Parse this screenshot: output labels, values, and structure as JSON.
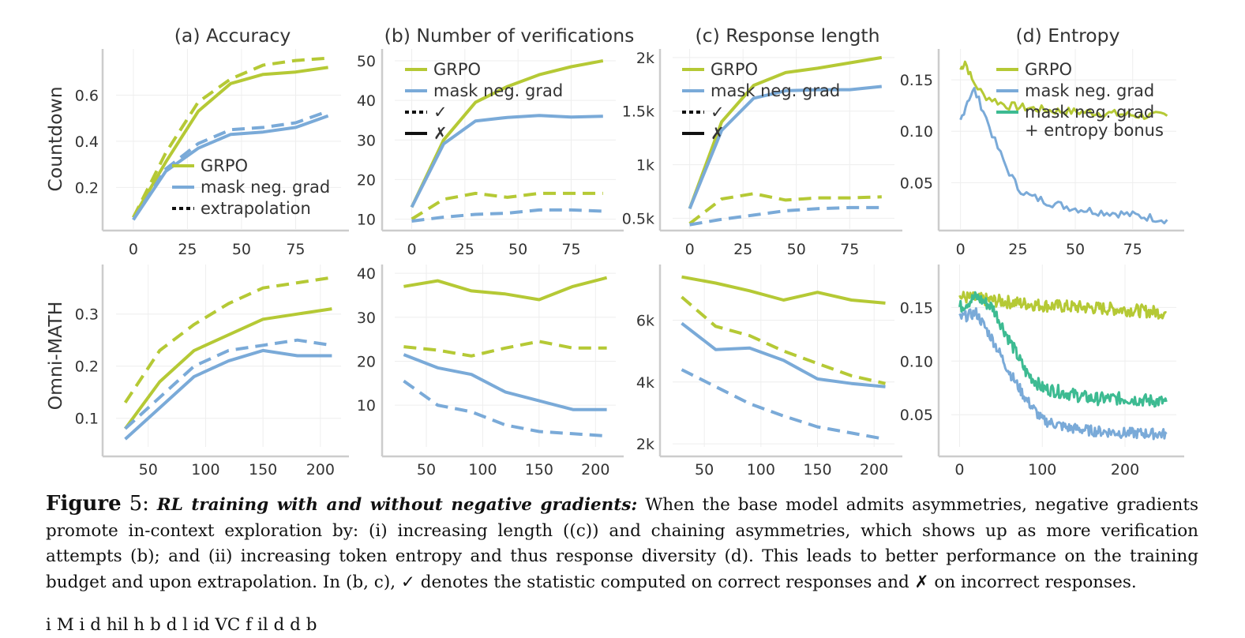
{
  "figure": {
    "label": "Figure",
    "number": "5:",
    "caption_title": "RL training with and without negative gradients:",
    "caption_body": " When the base model admits asymmetries, negative gradients promote in-context exploration by: (i) increasing length ((c)) and chaining asymmetries, which shows up as more verification attempts (b); and (ii) increasing token entropy and thus response diversity (d). This leads to better performance on the training budget and upon extrapolation. In (b, c), ✓ denotes the statistic computed on correct responses and ✗ on incorrect responses.",
    "next_text_fragment": "i          M         i            d   hil  h  b        d l  id         VC                      f il                      d                 d  b"
  },
  "colors": {
    "grpo": "#b5c935",
    "mask": "#7aaad8",
    "entropy_bonus": "#3dbb92",
    "axis": "#cccccc",
    "grid": "#eeeeee"
  },
  "row_labels": [
    "Countdown",
    "Omni-MATH"
  ],
  "chart_data": [
    {
      "id": "countdown-accuracy",
      "type": "line",
      "title": "(a) Accuracy",
      "xlim": [
        -8,
        96
      ],
      "ylim": [
        0.02,
        0.8
      ],
      "xticks": [
        0,
        25,
        50,
        75
      ],
      "xticklabels": [
        "0",
        "25",
        "50",
        "75"
      ],
      "yticks": [
        0.2,
        0.4,
        0.6
      ],
      "yticklabels": [
        "0.2",
        "0.4",
        "0.6"
      ],
      "legend": {
        "position": "lower-right",
        "entries": [
          {
            "label": "GRPO",
            "color": "grpo",
            "style": "solid"
          },
          {
            "label": "mask neg. grad",
            "color": "mask",
            "style": "solid"
          },
          {
            "label": "extrapolation",
            "color": "#111111",
            "style": "dotted"
          }
        ]
      },
      "series": [
        {
          "color": "grpo",
          "style": "solid",
          "x": [
            0,
            15,
            30,
            45,
            60,
            75,
            90
          ],
          "y": [
            0.07,
            0.31,
            0.53,
            0.65,
            0.69,
            0.7,
            0.72
          ]
        },
        {
          "color": "grpo",
          "style": "dashed",
          "x": [
            0,
            15,
            30,
            45,
            60,
            75,
            90
          ],
          "y": [
            0.07,
            0.35,
            0.57,
            0.67,
            0.73,
            0.75,
            0.76
          ]
        },
        {
          "color": "mask",
          "style": "solid",
          "x": [
            0,
            15,
            30,
            45,
            60,
            75,
            90
          ],
          "y": [
            0.06,
            0.27,
            0.37,
            0.43,
            0.44,
            0.46,
            0.51
          ]
        },
        {
          "color": "mask",
          "style": "dashed",
          "x": [
            0,
            15,
            30,
            45,
            60,
            75,
            90
          ],
          "y": [
            0.06,
            0.28,
            0.39,
            0.45,
            0.46,
            0.48,
            0.53
          ]
        }
      ]
    },
    {
      "id": "countdown-verifications",
      "type": "line",
      "title": "(b) Number of verifications",
      "xlim": [
        -8,
        96
      ],
      "ylim": [
        7.5,
        53
      ],
      "xticks": [
        0,
        25,
        50,
        75
      ],
      "xticklabels": [
        "0",
        "25",
        "50",
        "75"
      ],
      "yticks": [
        10,
        20,
        30,
        40,
        50
      ],
      "yticklabels": [
        "10",
        "20",
        "30",
        "40",
        "50"
      ],
      "legend": {
        "position": "top-left",
        "entries": [
          {
            "label": "GRPO",
            "color": "grpo",
            "style": "solid"
          },
          {
            "label": "mask neg. grad",
            "color": "mask",
            "style": "solid"
          },
          {
            "label": "✓",
            "color": "#111111",
            "style": "dotted"
          },
          {
            "label": "✗",
            "color": "#111111",
            "style": "solid"
          }
        ]
      },
      "series": [
        {
          "color": "grpo",
          "style": "solid",
          "x": [
            0,
            15,
            30,
            45,
            60,
            75,
            90
          ],
          "y": [
            13,
            30,
            39.5,
            43.5,
            46.5,
            48.5,
            50
          ]
        },
        {
          "color": "mask",
          "style": "solid",
          "x": [
            0,
            15,
            30,
            45,
            60,
            75,
            90
          ],
          "y": [
            13,
            29,
            34.8,
            35.7,
            36.2,
            35.8,
            36
          ]
        },
        {
          "color": "grpo",
          "style": "dashed",
          "x": [
            0,
            15,
            30,
            45,
            60,
            75,
            90
          ],
          "y": [
            10,
            15,
            16.5,
            15.5,
            16.5,
            16.5,
            16.5
          ]
        },
        {
          "color": "mask",
          "style": "dashed",
          "x": [
            0,
            15,
            30,
            45,
            60,
            75,
            90
          ],
          "y": [
            9.5,
            10.5,
            11.2,
            11.5,
            12.3,
            12.3,
            12
          ]
        }
      ]
    },
    {
      "id": "countdown-length",
      "type": "line",
      "title": "(c) Response length",
      "xlim": [
        -8,
        96
      ],
      "ylim": [
        400,
        2080
      ],
      "xticks": [
        0,
        25,
        50,
        75
      ],
      "xticklabels": [
        "0",
        "25",
        "50",
        "75"
      ],
      "yticks": [
        500,
        1000,
        1500,
        2000
      ],
      "yticklabels": [
        "0.5k",
        "1k",
        "1.5k",
        "2k"
      ],
      "legend": {
        "position": "top-left",
        "entries": [
          {
            "label": "GRPO",
            "color": "grpo",
            "style": "solid"
          },
          {
            "label": "mask neg. grad",
            "color": "mask",
            "style": "solid"
          },
          {
            "label": "✓",
            "color": "#111111",
            "style": "dotted"
          },
          {
            "label": "✗",
            "color": "#111111",
            "style": "solid"
          }
        ]
      },
      "series": [
        {
          "color": "grpo",
          "style": "solid",
          "x": [
            0,
            15,
            30,
            45,
            60,
            75,
            90
          ],
          "y": [
            590,
            1400,
            1740,
            1860,
            1900,
            1950,
            2000
          ]
        },
        {
          "color": "mask",
          "style": "solid",
          "x": [
            0,
            15,
            30,
            45,
            60,
            75,
            90
          ],
          "y": [
            590,
            1320,
            1620,
            1690,
            1700,
            1700,
            1730
          ]
        },
        {
          "color": "grpo",
          "style": "dashed",
          "x": [
            0,
            15,
            30,
            45,
            60,
            75,
            90
          ],
          "y": [
            450,
            680,
            730,
            670,
            690,
            690,
            700
          ]
        },
        {
          "color": "mask",
          "style": "dashed",
          "x": [
            0,
            15,
            30,
            45,
            60,
            75,
            90
          ],
          "y": [
            440,
            490,
            530,
            570,
            590,
            600,
            600
          ]
        }
      ]
    },
    {
      "id": "countdown-entropy",
      "type": "line",
      "title": "(d) Entropy",
      "xlim": [
        -4,
        94
      ],
      "ylim": [
        0.005,
        0.18
      ],
      "xticks": [
        0,
        25,
        50,
        75
      ],
      "xticklabels": [
        "0",
        "25",
        "50",
        "75"
      ],
      "yticks": [
        0.05,
        0.1,
        0.15
      ],
      "yticklabels": [
        "0.05",
        "0.10",
        "0.15"
      ],
      "legend": {
        "position": "top-right",
        "entries": [
          {
            "label": "GRPO",
            "color": "grpo",
            "style": "solid"
          },
          {
            "label": "mask neg. grad",
            "color": "mask",
            "style": "solid"
          },
          {
            "label": "mask neg. grad",
            "label2": "+ entropy bonus",
            "color": "entropy_bonus",
            "style": "solid"
          }
        ]
      },
      "series": [
        {
          "color": "grpo",
          "style": "solid",
          "noisy": 0.004,
          "x": [
            0,
            2,
            5,
            10,
            20,
            40,
            60,
            80,
            90
          ],
          "y": [
            0.16,
            0.168,
            0.15,
            0.135,
            0.125,
            0.12,
            0.118,
            0.115,
            0.115
          ]
        },
        {
          "color": "mask",
          "style": "solid",
          "noisy": 0.004,
          "x": [
            0,
            3,
            6,
            10,
            15,
            20,
            25,
            30,
            40,
            50,
            60,
            70,
            80,
            90
          ],
          "y": [
            0.11,
            0.13,
            0.14,
            0.12,
            0.09,
            0.065,
            0.045,
            0.037,
            0.03,
            0.025,
            0.022,
            0.02,
            0.017,
            0.014
          ]
        }
      ]
    },
    {
      "id": "omnimath-accuracy",
      "type": "line",
      "title": "",
      "xlim": [
        22,
        218
      ],
      "ylim": [
        0.045,
        0.395
      ],
      "xticks": [
        50,
        100,
        150,
        200
      ],
      "xticklabels": [
        "50",
        "100",
        "150",
        "200"
      ],
      "yticks": [
        0.1,
        0.2,
        0.3
      ],
      "yticklabels": [
        "0.1",
        "0.2",
        "0.3"
      ],
      "series": [
        {
          "color": "grpo",
          "style": "dashed",
          "x": [
            30,
            60,
            90,
            120,
            150,
            180,
            210
          ],
          "y": [
            0.13,
            0.23,
            0.28,
            0.32,
            0.35,
            0.36,
            0.37
          ]
        },
        {
          "color": "grpo",
          "style": "solid",
          "x": [
            30,
            60,
            90,
            120,
            150,
            180,
            210
          ],
          "y": [
            0.08,
            0.17,
            0.23,
            0.26,
            0.29,
            0.3,
            0.31
          ]
        },
        {
          "color": "mask",
          "style": "dashed",
          "x": [
            30,
            60,
            90,
            120,
            150,
            180,
            210
          ],
          "y": [
            0.08,
            0.14,
            0.2,
            0.23,
            0.24,
            0.25,
            0.24
          ]
        },
        {
          "color": "mask",
          "style": "solid",
          "x": [
            30,
            60,
            90,
            120,
            150,
            180,
            210
          ],
          "y": [
            0.06,
            0.12,
            0.18,
            0.21,
            0.23,
            0.22,
            0.22
          ]
        }
      ]
    },
    {
      "id": "omnimath-verifications",
      "type": "line",
      "title": "",
      "xlim": [
        22,
        218
      ],
      "ylim": [
        0.5,
        42
      ],
      "xticks": [
        50,
        100,
        150,
        200
      ],
      "xticklabels": [
        "50",
        "100",
        "150",
        "200"
      ],
      "yticks": [
        10,
        20,
        30,
        40
      ],
      "yticklabels": [
        "10",
        "20",
        "30",
        "40"
      ],
      "series": [
        {
          "color": "grpo",
          "style": "solid",
          "x": [
            30,
            60,
            90,
            120,
            150,
            180,
            210
          ],
          "y": [
            37,
            38.3,
            36,
            35.3,
            34,
            37,
            39
          ]
        },
        {
          "color": "grpo",
          "style": "dashed",
          "x": [
            30,
            60,
            90,
            120,
            150,
            180,
            210
          ],
          "y": [
            23.3,
            22.5,
            21.2,
            23,
            24.5,
            23,
            23
          ]
        },
        {
          "color": "mask",
          "style": "solid",
          "x": [
            30,
            60,
            90,
            120,
            150,
            180,
            210
          ],
          "y": [
            21.5,
            18.5,
            17,
            13,
            11,
            9,
            9
          ]
        },
        {
          "color": "mask",
          "style": "dashed",
          "x": [
            30,
            60,
            90,
            120,
            150,
            180,
            210
          ],
          "y": [
            15.5,
            10,
            8.5,
            5.5,
            4,
            3.5,
            3
          ]
        }
      ]
    },
    {
      "id": "omnimath-length",
      "type": "line",
      "title": "",
      "xlim": [
        22,
        218
      ],
      "ylim": [
        1900,
        7800
      ],
      "xticks": [
        50,
        100,
        150,
        200
      ],
      "xticklabels": [
        "50",
        "100",
        "150",
        "200"
      ],
      "yticks": [
        2000,
        4000,
        6000
      ],
      "yticklabels": [
        "2k",
        "4k",
        "6k"
      ],
      "series": [
        {
          "color": "grpo",
          "style": "solid",
          "x": [
            30,
            60,
            90,
            120,
            150,
            180,
            210
          ],
          "y": [
            7400,
            7200,
            6950,
            6650,
            6900,
            6650,
            6550
          ]
        },
        {
          "color": "grpo",
          "style": "dashed",
          "x": [
            30,
            60,
            90,
            120,
            150,
            180,
            210
          ],
          "y": [
            6750,
            5800,
            5500,
            5000,
            4600,
            4200,
            3950
          ]
        },
        {
          "color": "mask",
          "style": "solid",
          "x": [
            30,
            60,
            90,
            120,
            150,
            180,
            210
          ],
          "y": [
            5900,
            5050,
            5100,
            4700,
            4100,
            3950,
            3850
          ]
        },
        {
          "color": "mask",
          "style": "dashed",
          "x": [
            30,
            60,
            90,
            120,
            150,
            180,
            210
          ],
          "y": [
            4400,
            3850,
            3300,
            2900,
            2550,
            2350,
            2150
          ]
        }
      ]
    },
    {
      "id": "omnimath-entropy",
      "type": "line",
      "title": "",
      "xlim": [
        -10,
        262
      ],
      "ylim": [
        0.02,
        0.19
      ],
      "xticks": [
        0,
        100,
        200
      ],
      "xticklabels": [
        "0",
        "100",
        "200"
      ],
      "yticks": [
        0.05,
        0.1,
        0.15
      ],
      "yticklabels": [
        "0.05",
        "0.10",
        "0.15"
      ],
      "series": [
        {
          "color": "grpo",
          "style": "solid",
          "noisy": 0.006,
          "x": [
            0,
            20,
            60,
            100,
            150,
            200,
            250
          ],
          "y": [
            0.16,
            0.158,
            0.155,
            0.152,
            0.15,
            0.148,
            0.145
          ]
        },
        {
          "color": "entropy_bonus",
          "style": "solid",
          "noisy": 0.006,
          "x": [
            0,
            20,
            40,
            60,
            80,
            100,
            130,
            160,
            200,
            250
          ],
          "y": [
            0.15,
            0.16,
            0.15,
            0.12,
            0.09,
            0.075,
            0.07,
            0.065,
            0.065,
            0.062
          ]
        },
        {
          "color": "mask",
          "style": "solid",
          "noisy": 0.005,
          "x": [
            0,
            20,
            40,
            60,
            80,
            100,
            130,
            160,
            200,
            250
          ],
          "y": [
            0.14,
            0.145,
            0.12,
            0.09,
            0.065,
            0.045,
            0.038,
            0.035,
            0.033,
            0.032
          ]
        }
      ]
    }
  ]
}
